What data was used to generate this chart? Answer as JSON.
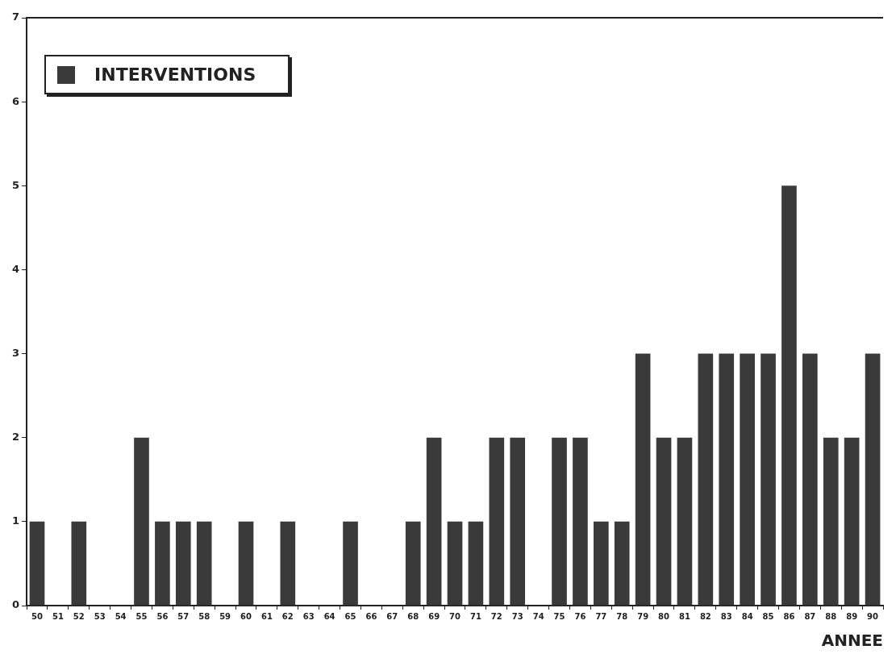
{
  "chart_data": {
    "type": "bar",
    "categories": [
      "50",
      "51",
      "52",
      "53",
      "54",
      "55",
      "56",
      "57",
      "58",
      "59",
      "60",
      "61",
      "62",
      "63",
      "64",
      "65",
      "66",
      "67",
      "68",
      "69",
      "70",
      "71",
      "72",
      "73",
      "74",
      "75",
      "76",
      "77",
      "78",
      "79",
      "80",
      "81",
      "82",
      "83",
      "84",
      "85",
      "86",
      "87",
      "88",
      "89",
      "90"
    ],
    "series": [
      {
        "name": "INTERVENTIONS",
        "color": "#3a3a3a",
        "values": [
          1,
          0,
          1,
          0,
          0,
          2,
          1,
          1,
          1,
          0,
          1,
          0,
          1,
          0,
          0,
          1,
          0,
          0,
          1,
          2,
          1,
          1,
          2,
          2,
          0,
          2,
          2,
          1,
          1,
          3,
          2,
          2,
          3,
          3,
          3,
          3,
          5,
          3,
          2,
          2,
          3
        ]
      }
    ],
    "xlabel": "ANNEE",
    "ylim": [
      0,
      7
    ],
    "yticks": [
      0,
      1,
      2,
      3,
      4,
      5,
      6,
      7
    ],
    "legend": "top left"
  }
}
